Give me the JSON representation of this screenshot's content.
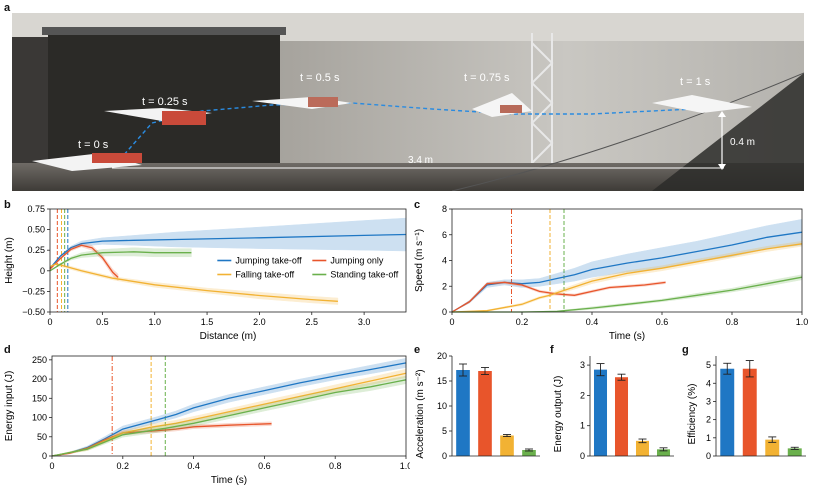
{
  "panel_letters": {
    "a": "a",
    "b": "b",
    "c": "c",
    "d": "d",
    "e": "e",
    "f": "f",
    "g": "g"
  },
  "colors": {
    "blue": "#1f77c4",
    "red": "#e8552b",
    "yellow": "#f2b233",
    "green": "#6ab04c"
  },
  "photo": {
    "time_labels": [
      "t = 0 s",
      "t = 0.25 s",
      "t = 0.5 s",
      "t = 0.75 s",
      "t = 1 s"
    ],
    "distance_label": "3.4 m",
    "height_label": "0.4 m"
  },
  "chart_data": [
    {
      "id": "b",
      "type": "line",
      "xlabel": "Distance (m)",
      "ylabel": "Height (m)",
      "xlim": [
        0,
        3.4
      ],
      "ylim": [
        -0.5,
        0.75
      ],
      "xticks": [
        0,
        0.5,
        1.0,
        1.5,
        2.0,
        2.5,
        3.0
      ],
      "xtick_labels": [
        "0",
        "0.5",
        "1.0",
        "1.5",
        "2.0",
        "2.5",
        "3.0"
      ],
      "yticks": [
        -0.5,
        -0.25,
        0,
        0.25,
        0.5,
        0.75
      ],
      "ytick_labels": [
        "−0.50",
        "−0.25",
        "0",
        "0.25",
        "0.50",
        "0.75"
      ],
      "vlines": [
        {
          "x": 0.07,
          "color": "#e8552b"
        },
        {
          "x": 0.11,
          "color": "#f2b233"
        },
        {
          "x": 0.14,
          "color": "#6ab04c"
        },
        {
          "x": 0.17,
          "color": "#1f77c4"
        }
      ],
      "legend": [
        "Jumping take-off",
        "Jumping only",
        "Falling take-off",
        "Standing take-off"
      ],
      "legend_placement": "bottom-right",
      "series": [
        {
          "name": "Jumping take-off",
          "color": "#1f77c4",
          "x": [
            0,
            0.1,
            0.2,
            0.3,
            0.5,
            0.8,
            1.2,
            2.0,
            3.0,
            3.4
          ],
          "y": [
            0.03,
            0.18,
            0.28,
            0.33,
            0.36,
            0.37,
            0.38,
            0.4,
            0.43,
            0.44
          ],
          "band": [
            0,
            0.01,
            0.02,
            0.03,
            0.04,
            0.06,
            0.09,
            0.13,
            0.18,
            0.2
          ]
        },
        {
          "name": "Jumping only",
          "color": "#e8552b",
          "x": [
            0,
            0.1,
            0.2,
            0.3,
            0.4,
            0.5,
            0.6,
            0.65
          ],
          "y": [
            0.02,
            0.15,
            0.26,
            0.31,
            0.28,
            0.16,
            -0.02,
            -0.08
          ],
          "band": [
            0,
            0.01,
            0.02,
            0.02,
            0.03,
            0.03,
            0.04,
            0.04
          ]
        },
        {
          "name": "Falling take-off",
          "color": "#f2b233",
          "x": [
            0,
            0.05,
            0.1,
            0.3,
            0.6,
            1.0,
            1.5,
            2.0,
            2.5,
            2.75
          ],
          "y": [
            0.05,
            0.08,
            0.07,
            0.0,
            -0.09,
            -0.17,
            -0.24,
            -0.3,
            -0.35,
            -0.37
          ],
          "band": [
            0,
            0.01,
            0.02,
            0.02,
            0.02,
            0.03,
            0.03,
            0.04,
            0.04,
            0.04
          ]
        },
        {
          "name": "Standing take-off",
          "color": "#6ab04c",
          "x": [
            0,
            0.1,
            0.2,
            0.3,
            0.5,
            0.8,
            1.0,
            1.35
          ],
          "y": [
            0.0,
            0.08,
            0.15,
            0.19,
            0.22,
            0.23,
            0.22,
            0.22
          ],
          "band": [
            0,
            0.01,
            0.02,
            0.03,
            0.04,
            0.05,
            0.05,
            0.05
          ]
        }
      ]
    },
    {
      "id": "c",
      "type": "line",
      "xlabel": "Time (s)",
      "ylabel": "Speed (m s⁻¹)",
      "xlim": [
        0,
        1.0
      ],
      "ylim": [
        0,
        8
      ],
      "xticks": [
        0,
        0.2,
        0.4,
        0.6,
        0.8,
        1.0
      ],
      "xtick_labels": [
        "0",
        "0.2",
        "0.4",
        "0.6",
        "0.8",
        "1.0"
      ],
      "yticks": [
        0,
        2,
        4,
        6,
        8
      ],
      "ytick_labels": [
        "0",
        "2",
        "4",
        "6",
        "8"
      ],
      "vlines": [
        {
          "x": 0.17,
          "color": "#e8552b"
        },
        {
          "x": 0.28,
          "color": "#f2b233"
        },
        {
          "x": 0.32,
          "color": "#6ab04c"
        }
      ],
      "series": [
        {
          "name": "Jumping take-off",
          "color": "#1f77c4",
          "x": [
            0,
            0.05,
            0.1,
            0.15,
            0.2,
            0.25,
            0.3,
            0.35,
            0.4,
            0.5,
            0.6,
            0.7,
            0.8,
            0.9,
            1.0
          ],
          "y": [
            0,
            0.8,
            2.1,
            2.3,
            2.2,
            2.3,
            2.6,
            2.9,
            3.3,
            3.8,
            4.2,
            4.7,
            5.2,
            5.8,
            6.2
          ],
          "band": [
            0,
            0.1,
            0.2,
            0.2,
            0.3,
            0.3,
            0.4,
            0.5,
            0.6,
            0.7,
            0.8,
            0.8,
            0.9,
            0.9,
            1.0
          ]
        },
        {
          "name": "Jumping only",
          "color": "#e8552b",
          "x": [
            0,
            0.05,
            0.1,
            0.15,
            0.2,
            0.25,
            0.3,
            0.35,
            0.4,
            0.45,
            0.5,
            0.55,
            0.61
          ],
          "y": [
            0,
            0.8,
            2.2,
            2.3,
            2.1,
            1.6,
            1.4,
            1.3,
            1.6,
            1.9,
            2.0,
            2.1,
            2.3
          ],
          "band": [
            0,
            0.1,
            0.1,
            0.1,
            0.1,
            0.1,
            0.1,
            0.1,
            0.1,
            0.1,
            0.1,
            0.1,
            0.1
          ]
        },
        {
          "name": "Falling take-off",
          "color": "#f2b233",
          "x": [
            0,
            0.1,
            0.2,
            0.25,
            0.28,
            0.3,
            0.4,
            0.5,
            0.6,
            0.7,
            0.8,
            0.9,
            1.0
          ],
          "y": [
            0,
            0.1,
            0.6,
            1.1,
            1.3,
            1.5,
            2.4,
            3.0,
            3.4,
            3.9,
            4.4,
            4.9,
            5.3
          ],
          "band": [
            0,
            0.05,
            0.1,
            0.1,
            0.1,
            0.15,
            0.2,
            0.2,
            0.2,
            0.2,
            0.2,
            0.2,
            0.2
          ]
        },
        {
          "name": "Standing take-off",
          "color": "#6ab04c",
          "x": [
            0,
            0.2,
            0.3,
            0.32,
            0.4,
            0.5,
            0.6,
            0.7,
            0.8,
            0.9,
            1.0
          ],
          "y": [
            0,
            0.0,
            0.05,
            0.1,
            0.3,
            0.6,
            0.9,
            1.3,
            1.7,
            2.2,
            2.7
          ],
          "band": [
            0,
            0,
            0.05,
            0.05,
            0.1,
            0.1,
            0.1,
            0.15,
            0.15,
            0.2,
            0.2
          ]
        }
      ]
    },
    {
      "id": "d",
      "type": "line",
      "xlabel": "Time (s)",
      "ylabel": "Energy input (J)",
      "xlim": [
        0,
        1.0
      ],
      "ylim": [
        0,
        260
      ],
      "xticks": [
        0,
        0.2,
        0.4,
        0.6,
        0.8,
        1.0
      ],
      "xtick_labels": [
        "0",
        "0.2",
        "0.4",
        "0.6",
        "0.8",
        "1.0"
      ],
      "yticks": [
        0,
        50,
        100,
        150,
        200,
        250
      ],
      "ytick_labels": [
        "0",
        "50",
        "100",
        "150",
        "200",
        "250"
      ],
      "vlines": [
        {
          "x": 0.17,
          "color": "#e8552b"
        },
        {
          "x": 0.28,
          "color": "#f2b233"
        },
        {
          "x": 0.32,
          "color": "#6ab04c"
        }
      ],
      "series": [
        {
          "name": "Jumping take-off",
          "color": "#1f77c4",
          "x": [
            0,
            0.05,
            0.1,
            0.15,
            0.2,
            0.3,
            0.35,
            0.4,
            0.5,
            0.6,
            0.7,
            0.8,
            0.9,
            1.0
          ],
          "y": [
            0,
            8,
            22,
            45,
            70,
            95,
            108,
            125,
            150,
            170,
            190,
            208,
            225,
            242
          ],
          "band": [
            0,
            2,
            4,
            6,
            8,
            8,
            9,
            10,
            10,
            10,
            10,
            10,
            11,
            12
          ]
        },
        {
          "name": "Jumping only",
          "color": "#e8552b",
          "x": [
            0,
            0.05,
            0.1,
            0.15,
            0.2,
            0.3,
            0.35,
            0.4,
            0.5,
            0.62
          ],
          "y": [
            0,
            7,
            20,
            42,
            60,
            66,
            70,
            76,
            80,
            84
          ],
          "band": [
            0,
            2,
            3,
            4,
            5,
            5,
            5,
            5,
            5,
            5
          ]
        },
        {
          "name": "Falling take-off",
          "color": "#f2b233",
          "x": [
            0,
            0.1,
            0.2,
            0.28,
            0.35,
            0.4,
            0.5,
            0.6,
            0.7,
            0.8,
            0.9,
            1.0
          ],
          "y": [
            0,
            18,
            60,
            75,
            85,
            95,
            115,
            135,
            155,
            175,
            195,
            215
          ],
          "band": [
            0,
            4,
            6,
            8,
            8,
            8,
            8,
            9,
            9,
            10,
            10,
            11
          ]
        },
        {
          "name": "Standing take-off",
          "color": "#6ab04c",
          "x": [
            0,
            0.1,
            0.2,
            0.32,
            0.4,
            0.5,
            0.6,
            0.7,
            0.8,
            0.9,
            1.0
          ],
          "y": [
            0,
            18,
            55,
            72,
            85,
            105,
            125,
            145,
            165,
            180,
            198
          ],
          "band": [
            0,
            4,
            6,
            8,
            8,
            8,
            8,
            9,
            9,
            10,
            10
          ]
        }
      ]
    },
    {
      "id": "e",
      "type": "bar",
      "ylabel": "Acceleration (m s⁻²)",
      "ylim": [
        0,
        20
      ],
      "yticks": [
        0,
        5,
        10,
        15,
        20
      ],
      "ytick_labels": [
        "0",
        "5",
        "10",
        "15",
        "20"
      ],
      "values": [
        17.2,
        17.0,
        4.1,
        1.2
      ],
      "errors": [
        1.2,
        0.7,
        0.2,
        0.2
      ],
      "colors": [
        "#1f77c4",
        "#e8552b",
        "#f2b233",
        "#6ab04c"
      ]
    },
    {
      "id": "f",
      "type": "bar",
      "ylabel": "Energy output (J)",
      "ylim": [
        0,
        3.3
      ],
      "yticks": [
        0,
        1,
        2,
        3
      ],
      "ytick_labels": [
        "0",
        "1",
        "2",
        "3"
      ],
      "values": [
        2.85,
        2.6,
        0.5,
        0.22
      ],
      "errors": [
        0.2,
        0.1,
        0.06,
        0.05
      ],
      "colors": [
        "#1f77c4",
        "#e8552b",
        "#f2b233",
        "#6ab04c"
      ]
    },
    {
      "id": "g",
      "type": "bar",
      "ylabel": "Efficiency (%)",
      "ylim": [
        0,
        5.5
      ],
      "yticks": [
        0,
        1,
        2,
        3,
        4,
        5
      ],
      "ytick_labels": [
        "0",
        "1",
        "2",
        "3",
        "4",
        "5"
      ],
      "values": [
        4.8,
        4.8,
        0.9,
        0.42
      ],
      "errors": [
        0.3,
        0.45,
        0.15,
        0.06
      ],
      "colors": [
        "#1f77c4",
        "#e8552b",
        "#f2b233",
        "#6ab04c"
      ]
    }
  ]
}
